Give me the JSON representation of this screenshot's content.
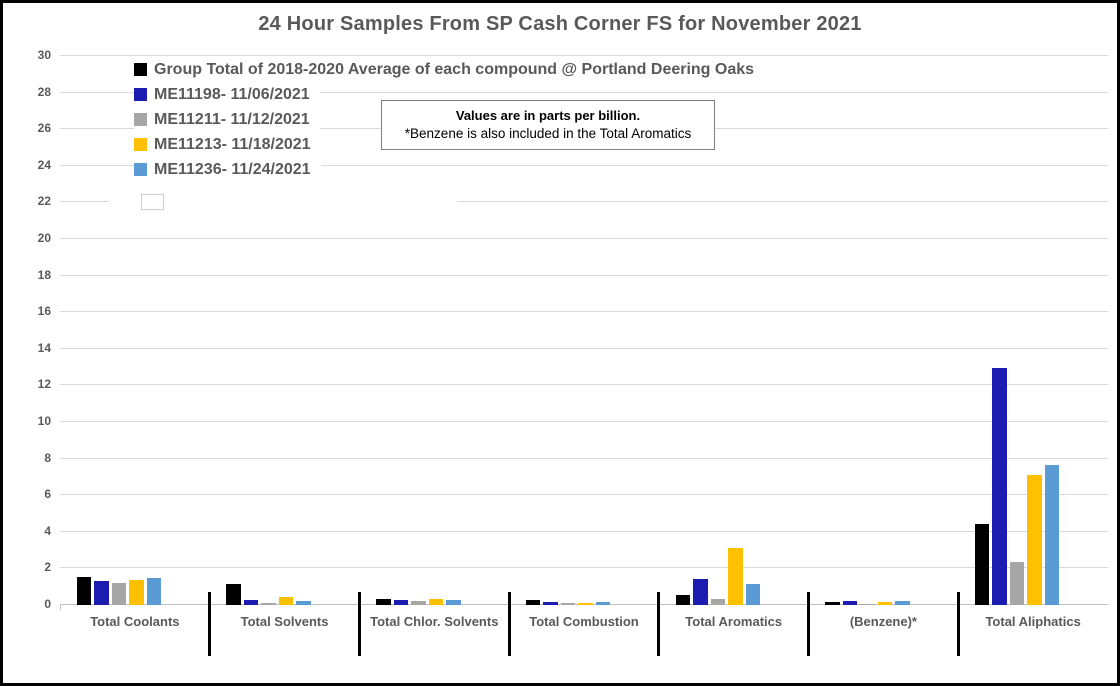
{
  "annotation": {
    "line1": "Values are in parts per billion.",
    "line2": "*Benzene is also included in the Total Aromatics"
  },
  "colors": {
    "text": "#595959",
    "gridline": "#D9D9D9",
    "axis_line": "#BFBFBF",
    "separator": "#000000"
  },
  "chart_data": {
    "type": "bar",
    "title": "24 Hour Samples From SP Cash Corner FS for November 2021",
    "categories": [
      "Total Coolants",
      "Total Solvents",
      "Total Chlor. Solvents",
      "Total Combustion",
      "Total Aromatics",
      "(Benzene)*",
      "Total Aliphatics"
    ],
    "series": [
      {
        "name": "Group Total of 2018-2020 Average of each compound @ Portland Deering Oaks",
        "color": "#000000",
        "values": [
          1.55,
          1.15,
          0.35,
          0.25,
          0.55,
          0.15,
          4.45
        ]
      },
      {
        "name": "ME11198- 11/06/2021",
        "color": "#1C1CB0",
        "values": [
          1.3,
          0.3,
          0.25,
          0.15,
          1.4,
          0.2,
          12.95
        ]
      },
      {
        "name": "ME11211- 11/12/2021",
        "color": "#A6A6A6",
        "values": [
          1.2,
          0.1,
          0.2,
          0.1,
          0.35,
          0.05,
          2.35
        ]
      },
      {
        "name": "ME11213- 11/18/2021",
        "color": "#FFC000",
        "values": [
          1.35,
          0.45,
          0.35,
          0.1,
          3.1,
          0.15,
          7.1
        ]
      },
      {
        "name": "ME11236- 11/24/2021",
        "color": "#5B9BD5",
        "values": [
          1.5,
          0.2,
          0.3,
          0.15,
          1.15,
          0.2,
          7.65
        ]
      }
    ],
    "xlabel": "",
    "ylabel": "",
    "ylim": [
      0,
      30
    ],
    "ytick_step": 2,
    "grid": true,
    "legend_position": "inside-top-left",
    "units_note": "parts per billion"
  }
}
